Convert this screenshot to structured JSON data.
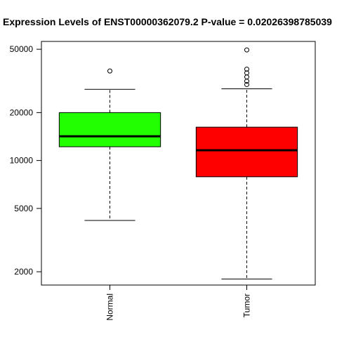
{
  "chart_data": {
    "type": "boxplot",
    "title": "Expression Levels of ENST00000362079.2 P-value = 0.02026398785039",
    "xlabel": "",
    "ylabel": "",
    "y_scale": "log",
    "ylim": [
      1650,
      56000
    ],
    "y_ticks": [
      2000,
      5000,
      10000,
      20000,
      50000
    ],
    "y_tick_labels": [
      "2000",
      "5000",
      "10000",
      "20000",
      "50000"
    ],
    "categories": [
      "Normal",
      "Tumor"
    ],
    "boxes": [
      {
        "name": "Normal",
        "color": "#22ff00",
        "whisker_low": 4200,
        "q1": 12200,
        "median": 14200,
        "q3": 20000,
        "whisker_high": 28000,
        "outliers": [
          36500
        ]
      },
      {
        "name": "Tumor",
        "color": "#ff0000",
        "whisker_low": 1800,
        "q1": 7900,
        "median": 11600,
        "q3": 16200,
        "whisker_high": 28200,
        "outliers": [
          30000,
          31500,
          33500,
          35500,
          37500,
          49500
        ]
      }
    ],
    "grid": false,
    "legend": "none"
  }
}
